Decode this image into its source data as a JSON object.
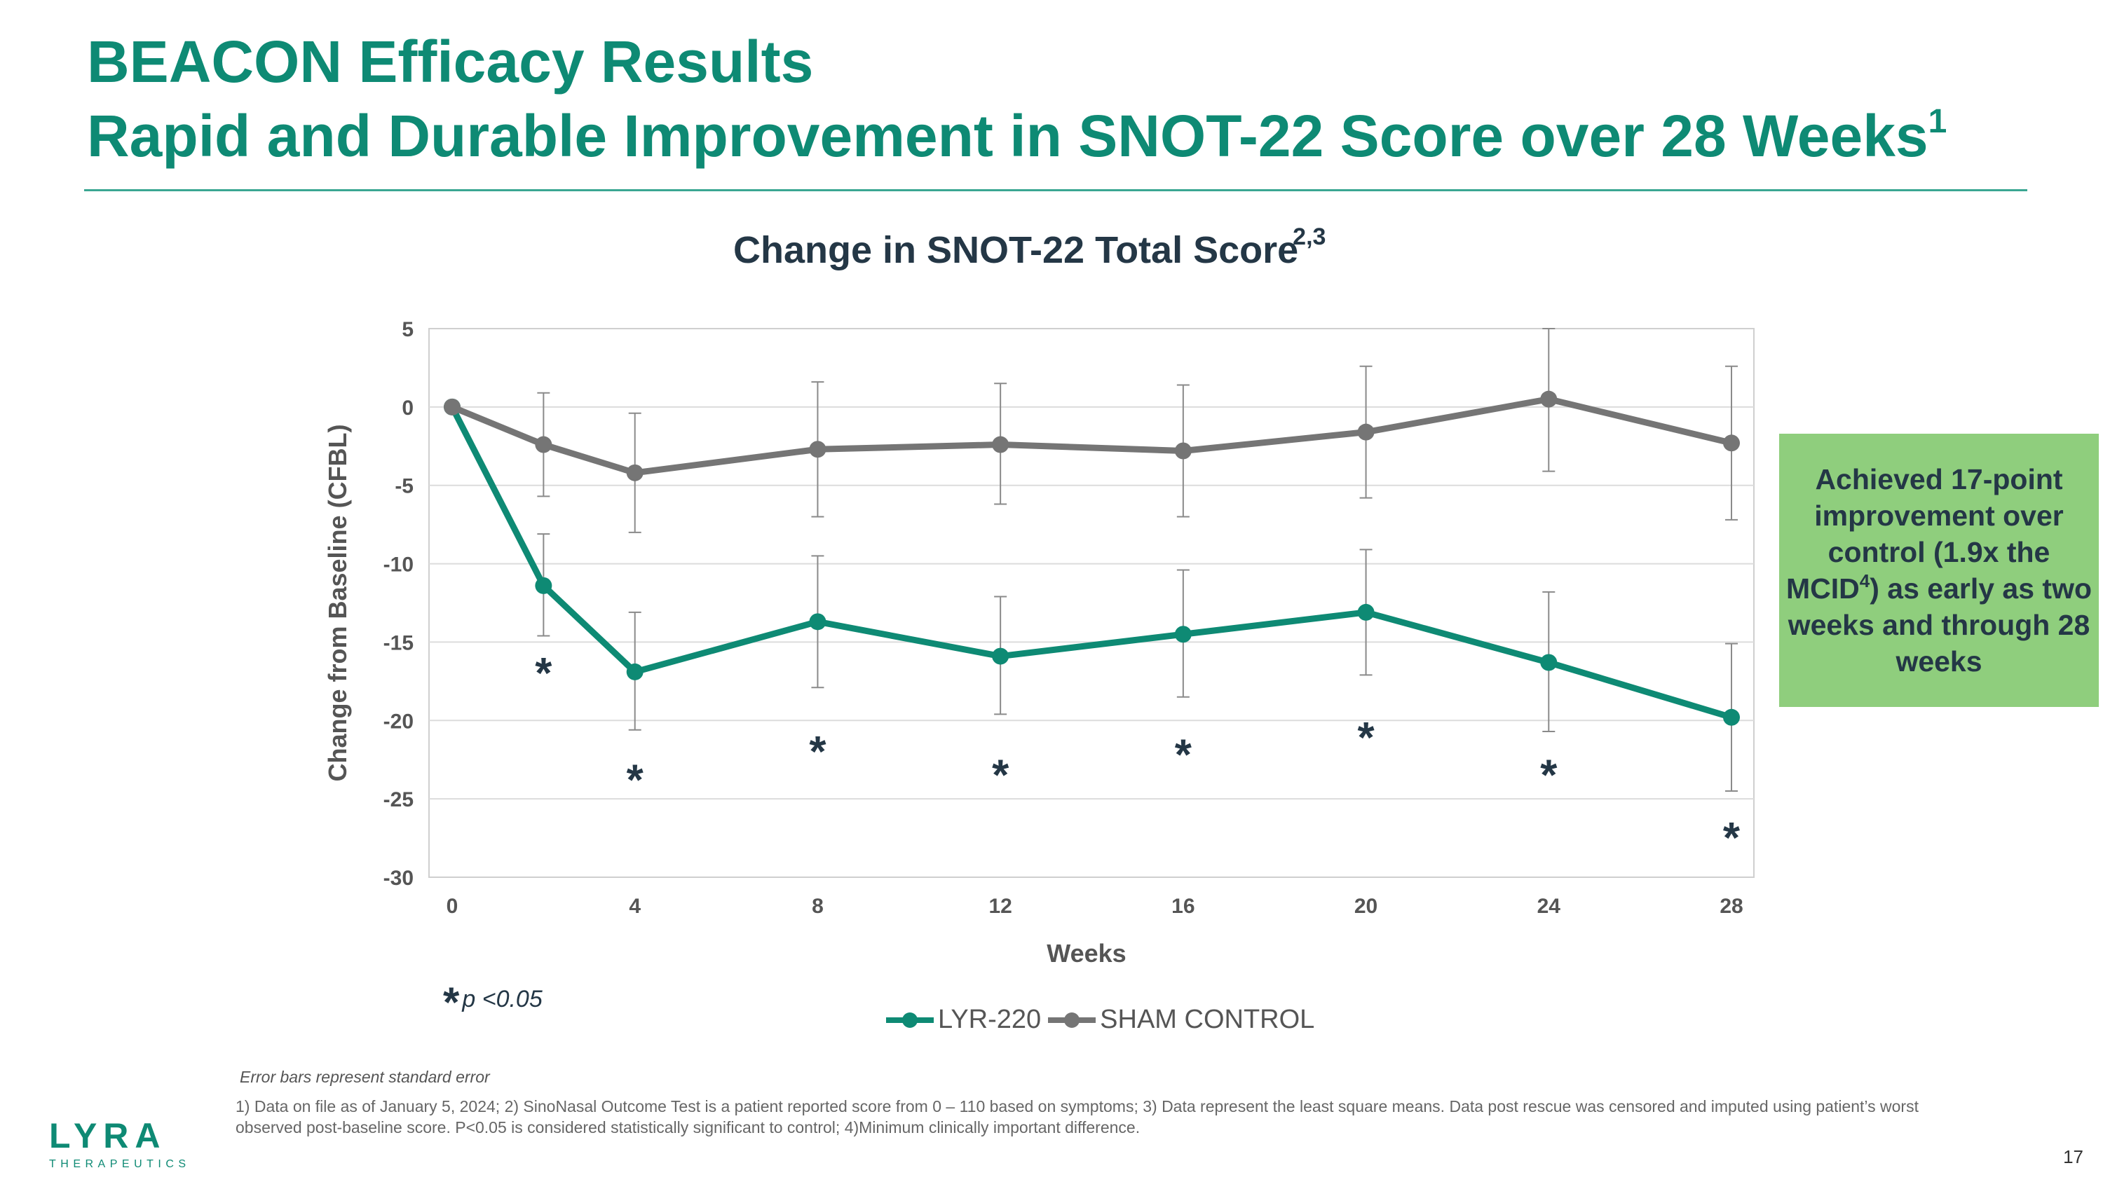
{
  "slide": {
    "title_line1": "BEACON Efficacy Results",
    "title_line2": "Rapid and Durable Improvement in SNOT-22 Score over 28 Weeks",
    "title_line2_sup": "1",
    "page_number": "17"
  },
  "chart_header": {
    "title": "Change in SNOT-22 Total Score",
    "title_sup": "2,3"
  },
  "callout": {
    "text_before_sup": "Achieved 17-point improvement over control (1.9x the MCID",
    "sup": "4",
    "text_after_sup": ") as early as two weeks and through 28 weeks"
  },
  "significance_note": {
    "symbol": "*",
    "text": "p <0.05"
  },
  "error_bar_note": "Error bars represent standard error",
  "footnote": "1) Data on file as of January 5, 2024; 2) SinoNasal Outcome Test is a patient reported score from 0 – 110 based on symptoms; 3) Data represent the least square means. Data post rescue was censored and imputed using patient’s worst observed post-baseline score. P<0.05 is considered statistically significant to control; 4)Minimum clinically important difference.",
  "logo": {
    "name": "LYRA",
    "subtitle": "THERAPEUTICS"
  },
  "chart_data": {
    "type": "line",
    "xlabel": "Weeks",
    "ylabel": "Change from Baseline (CFBL)",
    "x": [
      0,
      2,
      4,
      8,
      12,
      16,
      20,
      24,
      28
    ],
    "x_tick_labels": [
      "0",
      "4",
      "8",
      "12",
      "16",
      "20",
      "24",
      "28"
    ],
    "y_ticks": [
      5,
      0,
      -5,
      -10,
      -15,
      -20,
      -25,
      -30
    ],
    "ylim": [
      -30,
      5
    ],
    "series": [
      {
        "name": "LYR-220",
        "color": "#0e8a74",
        "values": [
          0,
          -11.4,
          -16.9,
          -13.7,
          -15.9,
          -14.5,
          -13.1,
          -16.3,
          -19.8
        ],
        "error_low": [
          null,
          -14.6,
          -20.6,
          -17.9,
          -19.6,
          -18.5,
          -17.1,
          -20.7,
          -24.5
        ],
        "error_high": [
          null,
          -8.1,
          -13.1,
          -9.5,
          -12.1,
          -10.4,
          -9.1,
          -11.8,
          -15.1
        ],
        "significant": [
          false,
          true,
          true,
          true,
          true,
          true,
          true,
          true,
          true
        ]
      },
      {
        "name": "SHAM CONTROL",
        "color": "#757575",
        "values": [
          0,
          -2.4,
          -4.2,
          -2.7,
          -2.4,
          -2.8,
          -1.6,
          0.5,
          -2.3
        ],
        "error_low": [
          null,
          -5.7,
          -8.0,
          -7.0,
          -6.2,
          -7.0,
          -5.8,
          -4.1,
          -7.2
        ],
        "error_high": [
          null,
          0.9,
          -0.4,
          1.6,
          1.5,
          1.4,
          2.6,
          5.0,
          2.6
        ]
      }
    ],
    "significance_star_values": [
      -16.6,
      -23.4,
      -21.6,
      -23.1,
      -21.8,
      -20.7,
      -23.1,
      -27.1
    ],
    "grid": "horizontal",
    "legend_position": "bottom-center"
  }
}
